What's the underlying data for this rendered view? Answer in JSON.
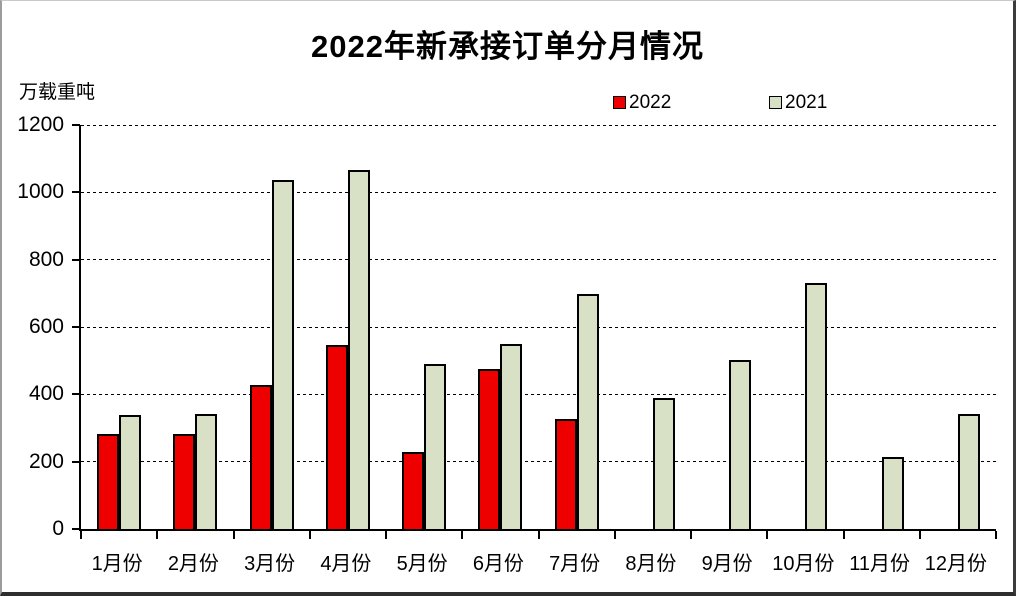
{
  "title": "2022年新承接订单分月情况",
  "y_unit": "万载重吨",
  "legend": [
    {
      "label": "2022",
      "color": "#ee0000"
    },
    {
      "label": "2021",
      "color": "#d8e0c5"
    }
  ],
  "colors": {
    "bar_border": "#000000",
    "grid": "#000000"
  },
  "chart_data": {
    "type": "bar",
    "title": "2022年新承接订单分月情况",
    "ylabel": "万载重吨",
    "categories": [
      "1月份",
      "2月份",
      "3月份",
      "4月份",
      "5月份",
      "6月份",
      "7月份",
      "8月份",
      "9月份",
      "10月份",
      "11月份",
      "12月份"
    ],
    "series": [
      {
        "name": "2022",
        "color": "#ee0000",
        "values": [
          281,
          283,
          429,
          548,
          229,
          476,
          328,
          0,
          0,
          0,
          0,
          0
        ]
      },
      {
        "name": "2021",
        "color": "#d8e0c5",
        "values": [
          338,
          342,
          1038,
          1067,
          489,
          550,
          698,
          389,
          503,
          730,
          215,
          341
        ]
      }
    ],
    "ylim": [
      0,
      1200
    ],
    "yticks": [
      0,
      200,
      400,
      600,
      800,
      1000,
      1200
    ],
    "grid": "dashed-horizontal",
    "legend_position": "top-right"
  }
}
